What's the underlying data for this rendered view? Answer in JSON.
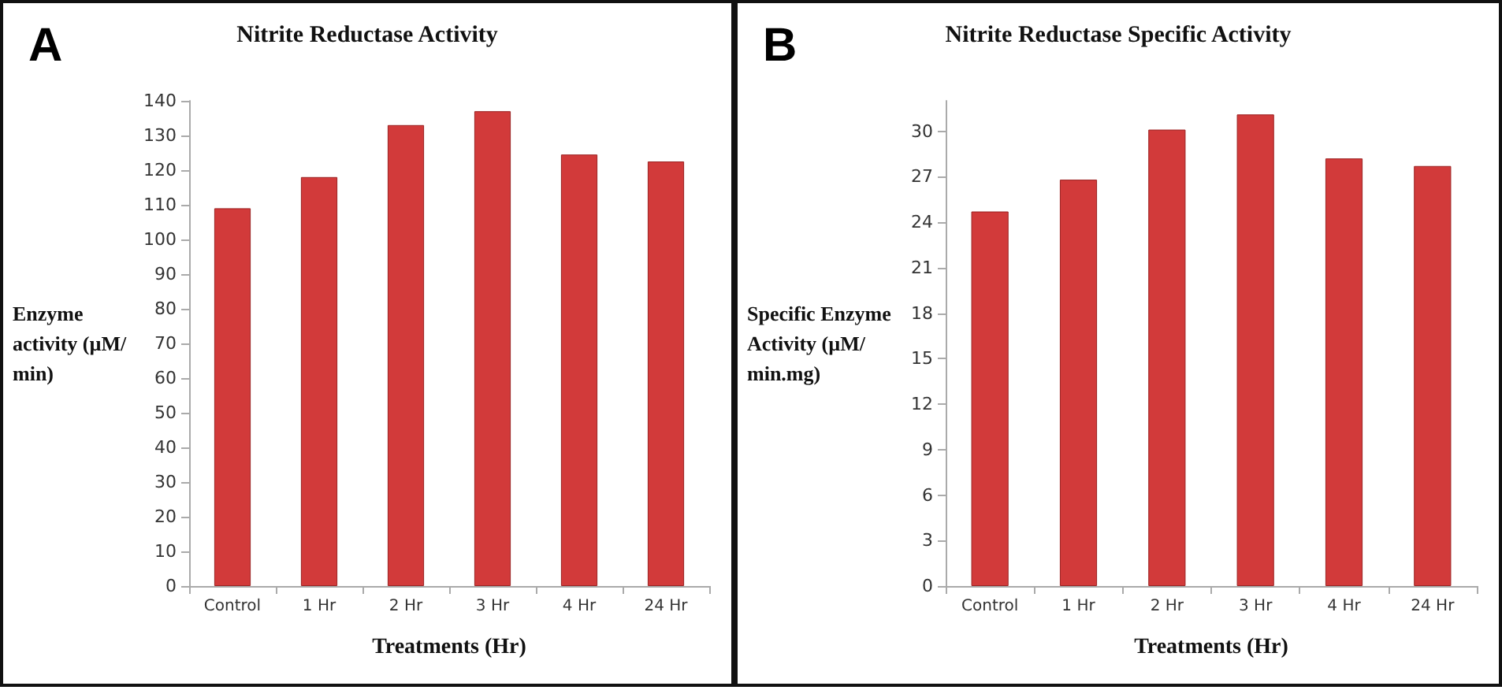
{
  "chart_data": [
    {
      "type": "bar",
      "title": "Nitrite Reductase Activity",
      "xlabel": "Treatments (Hr)",
      "ylabel": "Enzyme activity (µM/min)",
      "annotations": [
        "A"
      ],
      "categories": [
        "Control",
        "1 Hr",
        "2 Hr",
        "3 Hr",
        "4 Hr",
        "24 Hr"
      ],
      "values": [
        109,
        118,
        133,
        137,
        124.5,
        122.5
      ],
      "color": "#d23a3a",
      "ylim": [
        0,
        140
      ],
      "yticks": [
        0,
        10,
        20,
        30,
        40,
        50,
        60,
        70,
        80,
        90,
        100,
        110,
        120,
        130,
        140
      ]
    },
    {
      "type": "bar",
      "title": "Nitrite Reductase Specific Activity",
      "xlabel": "Treatments (Hr)",
      "ylabel": "Specific Enzyme Activity (µM/min.mg)",
      "annotations": [
        "B"
      ],
      "categories": [
        "Control",
        "1 Hr",
        "2 Hr",
        "3 Hr",
        "4 Hr",
        "24 Hr"
      ],
      "values": [
        24.7,
        26.8,
        30.1,
        31.1,
        28.2,
        27.7
      ],
      "color": "#d23a3a",
      "ylim": [
        0,
        32
      ],
      "yticks": [
        0,
        3,
        6,
        9,
        12,
        15,
        18,
        21,
        24,
        27,
        30
      ]
    }
  ]
}
